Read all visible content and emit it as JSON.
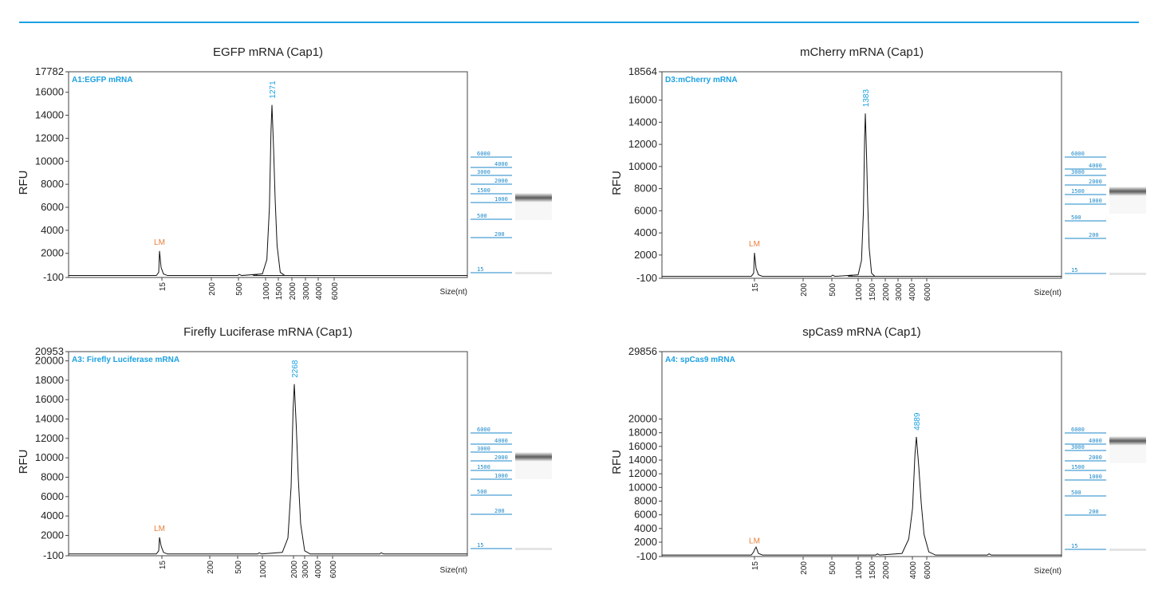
{
  "colors": {
    "accent": "#1ba1e2",
    "trace": "#111111",
    "lm_label": "#e8803a",
    "ladder": "#1b87c9"
  },
  "chart_data": [
    {
      "type": "line",
      "title": "EGFP mRNA (Cap1)",
      "sample_label": "A1:EGFP mRNA",
      "ylabel": "RFU",
      "xlabel": "Size(nt)",
      "ylim": [
        -100,
        17782
      ],
      "yticks": [
        "17782",
        "16000",
        "14000",
        "12000",
        "10000",
        "8000",
        "6000",
        "4000",
        "2000",
        "-100"
      ],
      "xticks": [
        "15",
        "200",
        "500",
        "1000",
        "1500",
        "2000",
        "3000",
        "4000",
        "6000"
      ],
      "peak_label": "1271",
      "lm_label": "LM",
      "lm_value": 2200,
      "peak_value": 14900,
      "ladder": [
        "6000",
        "4000",
        "3000",
        "2000",
        "1500",
        "1000",
        "500",
        "200",
        "15"
      ]
    },
    {
      "type": "line",
      "title": "mCherry mRNA (Cap1)",
      "sample_label": "D3:mCherry mRNA",
      "ylabel": "RFU",
      "xlabel": "Size(nt)",
      "ylim": [
        -100,
        18564
      ],
      "yticks": [
        "18564",
        "16000",
        "14000",
        "12000",
        "10000",
        "8000",
        "6000",
        "4000",
        "2000",
        "-100"
      ],
      "xticks": [
        "15",
        "200",
        "500",
        "1000",
        "1500",
        "2000",
        "3000",
        "4000",
        "6000"
      ],
      "peak_label": "1383",
      "lm_label": "LM",
      "lm_value": 2200,
      "peak_value": 14800,
      "ladder": [
        "6000",
        "4000",
        "3000",
        "2000",
        "1500",
        "1000",
        "500",
        "200",
        "15"
      ]
    },
    {
      "type": "line",
      "title": "Firefly Luciferase mRNA (Cap1)",
      "sample_label": "A3:  Firefly Luciferase mRNA",
      "ylabel": "RFU",
      "xlabel": "Size(nt)",
      "ylim": [
        -100,
        20953
      ],
      "yticks": [
        "20953",
        "20000",
        "18000",
        "16000",
        "14000",
        "12000",
        "10000",
        "8000",
        "6000",
        "4000",
        "2000",
        "-100"
      ],
      "xticks": [
        "15",
        "200",
        "500",
        "1000",
        "2000",
        "3000",
        "4000",
        "6000"
      ],
      "peak_label": "2268",
      "lm_label": "LM",
      "lm_value": 1800,
      "peak_value": 17600,
      "ladder": [
        "6000",
        "4000",
        "3000",
        "2000",
        "1500",
        "1000",
        "500",
        "200",
        "15"
      ]
    },
    {
      "type": "line",
      "title": "spCas9 mRNA (Cap1)",
      "sample_label": "A4:  spCas9 mRNA",
      "ylabel": "RFU",
      "xlabel": "Size(nt)",
      "ylim": [
        -100,
        29856
      ],
      "yticks": [
        "29856",
        "20000",
        "18000",
        "16000",
        "14000",
        "12000",
        "10000",
        "8000",
        "6000",
        "4000",
        "2000",
        "-100"
      ],
      "xticks": [
        "15",
        "200",
        "500",
        "1000",
        "1500",
        "2000",
        "4000",
        "6000"
      ],
      "peak_label": "4889",
      "lm_label": "LM",
      "lm_value": 900,
      "peak_value": 17400,
      "ladder": [
        "6000",
        "4000",
        "3000",
        "2000",
        "1500",
        "1000",
        "500",
        "200",
        "15"
      ]
    }
  ]
}
